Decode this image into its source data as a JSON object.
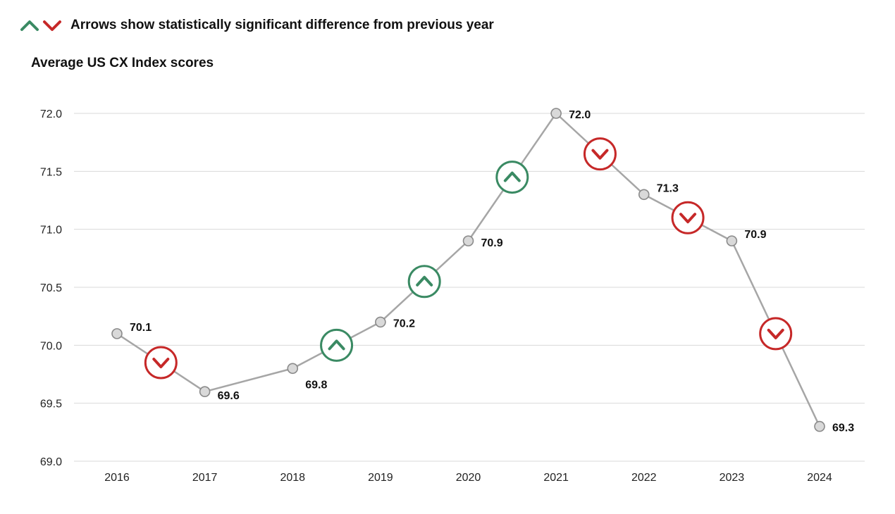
{
  "legend": {
    "text": "Arrows show statistically significant difference from previous year",
    "up_icon": "chevron-up-icon",
    "down_icon": "chevron-down-icon"
  },
  "colors": {
    "line": "#a6a6a6",
    "marker_fill": "#d9d9d9",
    "marker_stroke": "#8a8a8a",
    "grid": "#d9d9d9",
    "up": "#3a8a63",
    "down": "#c62828"
  },
  "chart_data": {
    "type": "line",
    "title": "Average US CX Index scores",
    "xlabel": "",
    "ylabel": "",
    "categories": [
      "2016",
      "2017",
      "2018",
      "2019",
      "2020",
      "2021",
      "2022",
      "2023",
      "2024"
    ],
    "series": [
      {
        "name": "Average US CX Index score",
        "values": [
          70.1,
          69.6,
          69.8,
          70.2,
          70.9,
          72.0,
          71.3,
          70.9,
          69.3
        ]
      }
    ],
    "data_labels": [
      "70.1",
      "69.6",
      "69.8",
      "70.2",
      "70.9",
      "72.0",
      "71.3",
      "70.9",
      "69.3"
    ],
    "ylim": [
      69.0,
      72.0
    ],
    "yticks": [
      "69.0",
      "69.5",
      "70.0",
      "70.5",
      "71.0",
      "71.5",
      "72.0"
    ],
    "grid": true,
    "significance_markers": [
      {
        "between": [
          "2016",
          "2017"
        ],
        "direction": "down"
      },
      {
        "between": [
          "2018",
          "2019"
        ],
        "direction": "up"
      },
      {
        "between": [
          "2019",
          "2020"
        ],
        "direction": "up"
      },
      {
        "between": [
          "2020",
          "2021"
        ],
        "direction": "up"
      },
      {
        "between": [
          "2021",
          "2022"
        ],
        "direction": "down"
      },
      {
        "between": [
          "2022",
          "2023"
        ],
        "direction": "down"
      },
      {
        "between": [
          "2023",
          "2024"
        ],
        "direction": "down"
      }
    ]
  }
}
